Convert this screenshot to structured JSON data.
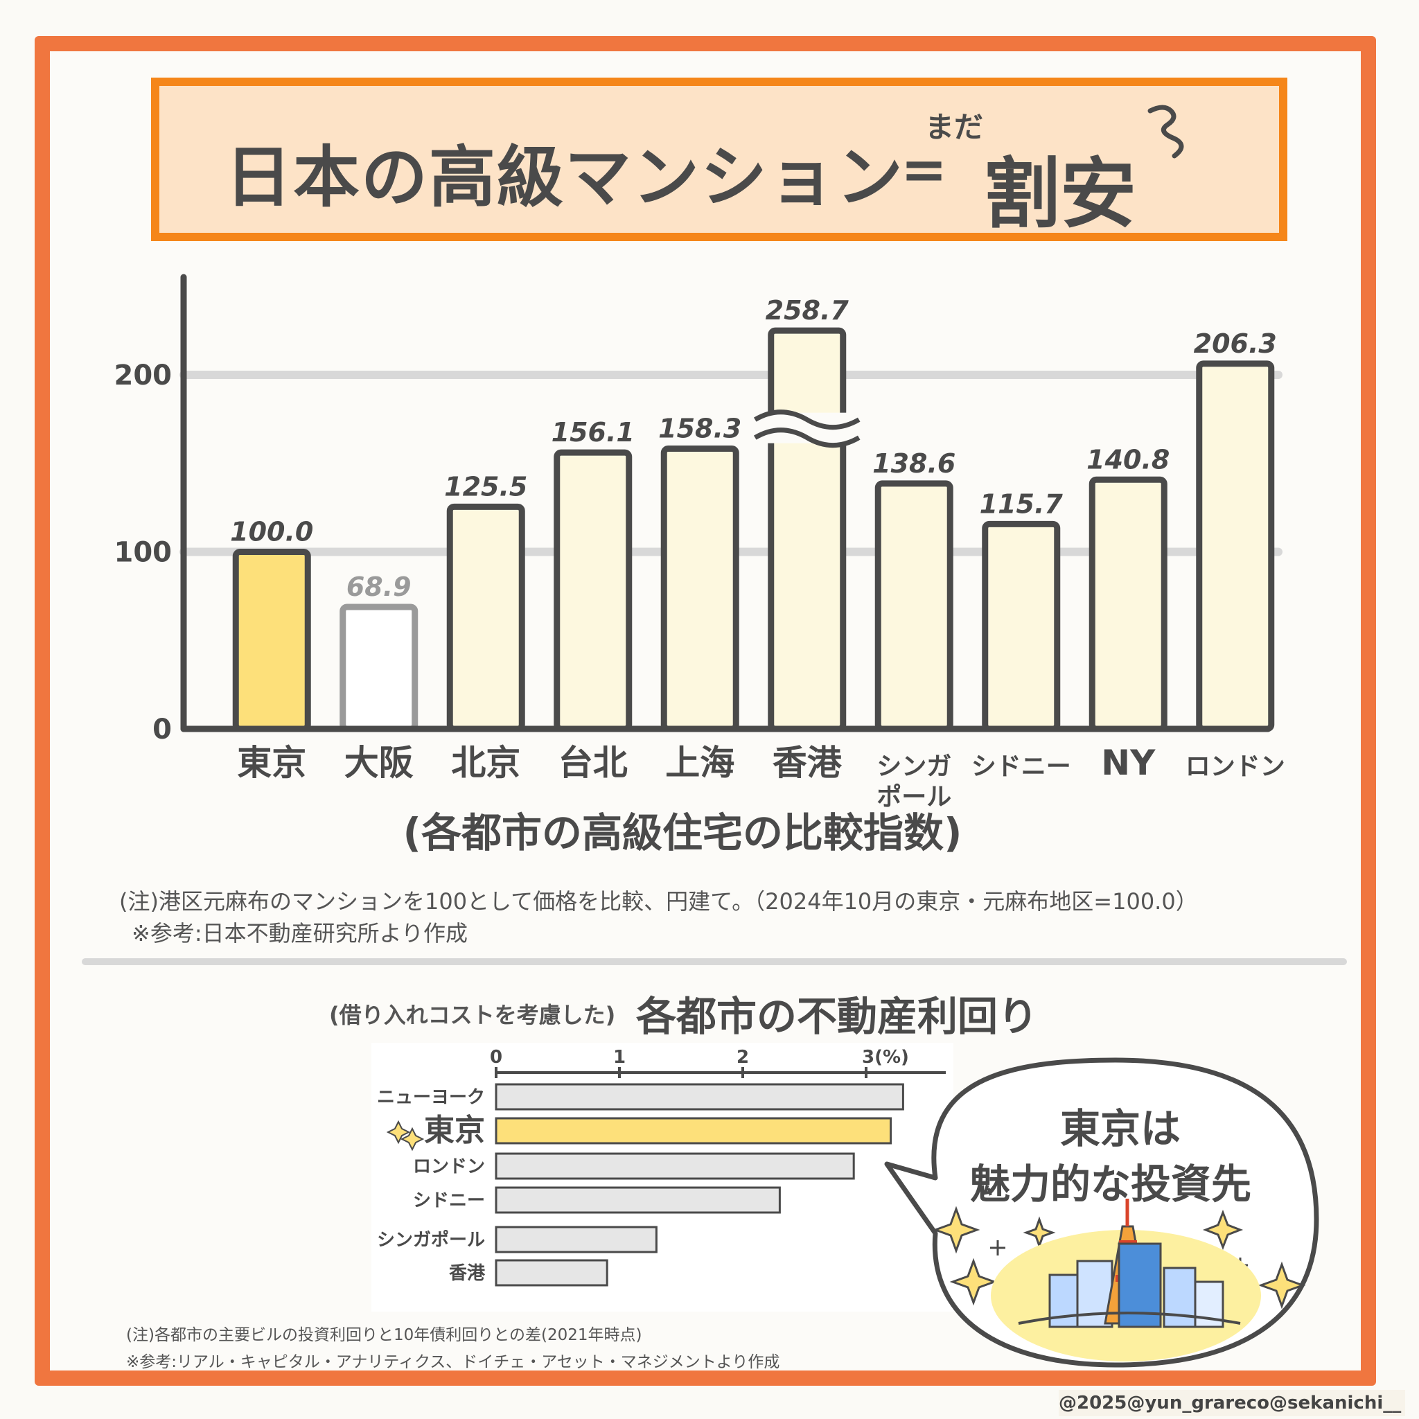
{
  "title": {
    "main": "日本の高級マンション",
    "equals": "=",
    "mada": "まだ",
    "wariyasu": "割安"
  },
  "chart_data": [
    {
      "type": "bar",
      "title": "(各都市の高級住宅の比較指数)",
      "categories": [
        "東京",
        "大阪",
        "北京",
        "台北",
        "上海",
        "香港",
        "シンガポール",
        "シドニー",
        "NY",
        "ロンドン"
      ],
      "category_lines": [
        [
          "東京"
        ],
        [
          "大阪"
        ],
        [
          "北京"
        ],
        [
          "台北"
        ],
        [
          "上海"
        ],
        [
          "香港"
        ],
        [
          "シンガ",
          "ポール"
        ],
        [
          "シドニー"
        ],
        [
          "NY"
        ],
        [
          "ロンドン"
        ]
      ],
      "values": [
        100.0,
        68.9,
        125.5,
        156.1,
        158.3,
        258.7,
        138.6,
        115.7,
        140.8,
        206.3
      ],
      "value_labels": [
        "100.0",
        "68.9",
        "125.5",
        "156.1",
        "158.3",
        "258.7",
        "138.6",
        "115.7",
        "140.8",
        "206.3"
      ],
      "yticks": [
        "0",
        "100",
        "200"
      ],
      "ylim": [
        0,
        250
      ],
      "grid": true,
      "axis_break_category": "香港",
      "colors": {
        "highlight": "#fde07a",
        "default": "#fdf8df",
        "muted": "#ffffff",
        "outline": "#4a4a4a",
        "muted_outline": "#9a9a9a"
      },
      "notes": [
        "(注)港区元麻布のマンションを100として価格を比較、円建て。（2024年10月の東京・元麻布地区=100.0）",
        "※参考:日本不動産研究所より作成"
      ]
    },
    {
      "type": "bar",
      "orientation": "horizontal",
      "title_prefix": "(借り入れコストを考慮した)",
      "title": "各都市の不動産利回り",
      "categories": [
        "ニューヨーク",
        "東京",
        "ロンドン",
        "シドニー",
        "シンガポール",
        "香港"
      ],
      "values": [
        3.3,
        3.2,
        2.9,
        2.3,
        1.3,
        0.9
      ],
      "xticks": [
        "0",
        "1",
        "2",
        "3(%)"
      ],
      "xlim": [
        0,
        3.7
      ],
      "colors": {
        "highlight": "#fde07a",
        "default": "#e6e6e6"
      },
      "notes": [
        "(注)各都市の主要ビルの投資利回りと10年債利回りとの差(2021年時点)",
        "※参考:リアル・キャピタル・アナリティクス、ドイチェ・アセット・マネジメントより作成"
      ]
    }
  ],
  "bubble": {
    "line1": "東京は",
    "line2": "魅力的な投資先"
  },
  "copyright": "@2025@yun_grareco@sekanichi__"
}
